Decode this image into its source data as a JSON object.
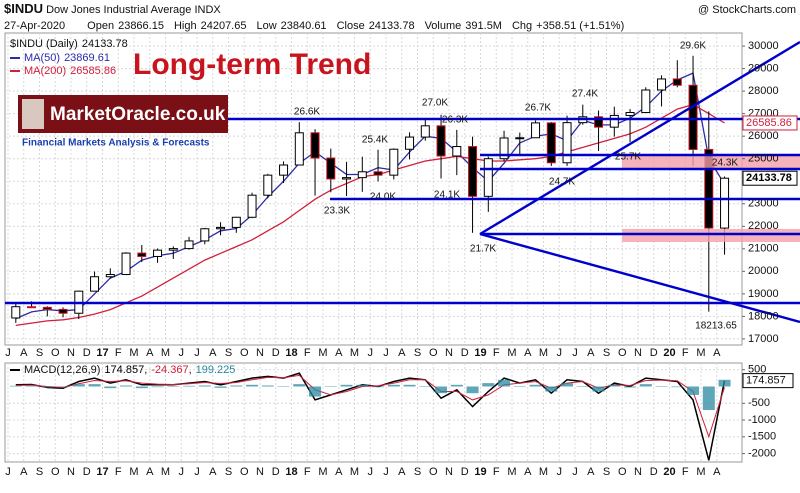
{
  "header": {
    "symbol": "$INDU",
    "name": "Dow Jones Industrial Average",
    "exchange": "INDX",
    "source": "@ StockCharts.com",
    "date": "27-Apr-2020",
    "fields": [
      {
        "label": "Open",
        "value": "23866.15"
      },
      {
        "label": "High",
        "value": "24207.65"
      },
      {
        "label": "Low",
        "value": "23840.61"
      },
      {
        "label": "Close",
        "value": "24133.78"
      },
      {
        "label": "Volume",
        "value": "391.5M"
      },
      {
        "label": "Chg",
        "value": "+358.51 (+1.51%)"
      }
    ]
  },
  "overlay": {
    "title": "Long-term Trend",
    "logo": "MarketOracle.co.uk",
    "tagline": "Financial Markets Analysis & Forecasts"
  },
  "chart_data": [
    {
      "type": "candlestick",
      "series_name": "$INDU (Daily)",
      "categories": [
        "J",
        "A",
        "S",
        "O",
        "N",
        "D",
        "17",
        "F",
        "M",
        "A",
        "M",
        "J",
        "J",
        "A",
        "S",
        "O",
        "N",
        "D",
        "18",
        "F",
        "M",
        "A",
        "M",
        "J",
        "J",
        "A",
        "S",
        "O",
        "N",
        "D",
        "19",
        "F",
        "M",
        "A",
        "M",
        "J",
        "J",
        "A",
        "S",
        "O",
        "N",
        "D",
        "20",
        "F",
        "M",
        "A"
      ],
      "open": [
        17930,
        18430,
        18400,
        18310,
        18140,
        19120,
        19760,
        19860,
        20810,
        20660,
        20940,
        21010,
        21350,
        21890,
        21950,
        22400,
        23380,
        24270,
        24720,
        26150,
        25030,
        24100,
        24160,
        24420,
        24270,
        25420,
        25960,
        26460,
        25120,
        25540,
        23330,
        25000,
        25920,
        25930,
        26590,
        24820,
        26600,
        26860,
        26400,
        26920,
        27050,
        28050,
        28540,
        28260,
        25410,
        21920
      ],
      "high": [
        18620,
        18670,
        18450,
        18400,
        19150,
        19990,
        20130,
        20850,
        21170,
        21010,
        21110,
        21530,
        21930,
        22180,
        22420,
        23490,
        24330,
        24880,
        26620,
        26310,
        25450,
        24860,
        25090,
        25400,
        25460,
        26170,
        26770,
        26950,
        26280,
        25980,
        25090,
        26240,
        26160,
        26700,
        26630,
        26910,
        27400,
        27140,
        27310,
        27200,
        28170,
        28700,
        29370,
        29570,
        27100,
        24210
      ],
      "low": [
        17710,
        18390,
        18000,
        17960,
        17880,
        19120,
        19680,
        19830,
        20410,
        20380,
        20550,
        20960,
        21200,
        21600,
        21710,
        22360,
        23240,
        23920,
        24720,
        23360,
        23510,
        23340,
        23530,
        23990,
        24080,
        24970,
        25800,
        24120,
        24270,
        21710,
        22640,
        24880,
        25210,
        25970,
        24680,
        24680,
        26510,
        25340,
        25980,
        25740,
        27030,
        27320,
        28170,
        24680,
        18214,
        20740
      ],
      "close": [
        18430,
        18400,
        18310,
        18140,
        19120,
        19760,
        19860,
        20810,
        20660,
        20940,
        21010,
        21350,
        21890,
        21950,
        22400,
        23380,
        24270,
        24720,
        26150,
        25030,
        24100,
        24160,
        24420,
        24270,
        25420,
        25960,
        26460,
        25120,
        25540,
        23330,
        25000,
        25920,
        25930,
        26590,
        24820,
        26600,
        26860,
        26400,
        26920,
        27050,
        28050,
        28540,
        28260,
        25410,
        21920,
        24133.78
      ],
      "overlays": [
        {
          "name": "MA(50)",
          "color": "#2c2ca8",
          "values": [
            17900,
            18200,
            18300,
            18250,
            18300,
            19000,
            19700,
            20000,
            20500,
            20700,
            20800,
            21100,
            21400,
            21800,
            21900,
            22500,
            23300,
            24000,
            24800,
            25300,
            24800,
            24300,
            24300,
            24600,
            24500,
            25300,
            26000,
            25900,
            25300,
            24600,
            24000,
            24800,
            25700,
            26000,
            26100,
            25800,
            26700,
            26500,
            26500,
            26800,
            27300,
            28000,
            28500,
            28800,
            25000,
            23869.61
          ]
        },
        {
          "name": "MA(200)",
          "color": "#d0203c",
          "values": [
            17600,
            17700,
            17800,
            17850,
            17950,
            18100,
            18300,
            18600,
            18900,
            19300,
            19700,
            20100,
            20500,
            20800,
            21100,
            21400,
            21800,
            22200,
            22700,
            23200,
            23600,
            23900,
            24200,
            24300,
            24500,
            24700,
            24900,
            25000,
            25100,
            25000,
            24900,
            24900,
            24950,
            25000,
            25100,
            25300,
            25500,
            25700,
            25900,
            26100,
            26400,
            26800,
            27200,
            27400,
            27000,
            26585.86
          ]
        }
      ],
      "annotations": [
        "26.6K",
        "25.4K",
        "27.0K",
        "26.3K",
        "26.7K",
        "27.4K",
        "29.6K",
        "23.3K",
        "24.0K",
        "24.1K",
        "21.7K",
        "24.7K",
        "25.7K",
        "24.3K",
        "18213.65"
      ],
      "ylim": [
        16730,
        30580
      ],
      "yticks": [
        17000,
        18000,
        19000,
        20000,
        21000,
        22000,
        23000,
        24000,
        25000,
        26000,
        27000,
        28000,
        29000,
        30000
      ],
      "grid": true
    },
    {
      "type": "macd",
      "name": "MACD(12,26,9)",
      "series": [
        {
          "color": "#000000",
          "values": [
            50,
            60,
            -30,
            -50,
            150,
            250,
            100,
            200,
            50,
            50,
            50,
            100,
            150,
            50,
            150,
            250,
            300,
            250,
            400,
            -400,
            -250,
            -100,
            50,
            0,
            150,
            250,
            200,
            -350,
            -100,
            -600,
            -150,
            250,
            100,
            200,
            -200,
            200,
            150,
            -200,
            100,
            0,
            250,
            200,
            150,
            -400,
            -2200,
            174.857
          ]
        },
        {
          "color": "#d0203c",
          "values": [
            30,
            40,
            0,
            -30,
            80,
            180,
            150,
            170,
            100,
            70,
            60,
            80,
            120,
            90,
            120,
            200,
            270,
            260,
            330,
            -100,
            -250,
            -150,
            0,
            20,
            100,
            200,
            200,
            -150,
            -150,
            -400,
            -250,
            50,
            100,
            150,
            -50,
            100,
            150,
            -50,
            50,
            30,
            180,
            190,
            170,
            -150,
            -1500,
            -24.367
          ]
        },
        {
          "color": "#2a8aa0",
          "style": "histogram",
          "values": [
            20,
            20,
            -30,
            -20,
            70,
            70,
            -50,
            30,
            -50,
            -20,
            -10,
            20,
            30,
            -40,
            30,
            50,
            30,
            -10,
            70,
            -300,
            0,
            50,
            50,
            -20,
            50,
            50,
            0,
            -200,
            50,
            -200,
            100,
            200,
            0,
            50,
            -150,
            100,
            0,
            -150,
            50,
            -30,
            70,
            10,
            -20,
            -250,
            -700,
            199.225
          ]
        }
      ],
      "ylim": [
        -2250,
        700
      ],
      "yticks": [
        500,
        -500,
        -1000,
        -1500,
        -2000
      ],
      "grid": true
    }
  ]
}
